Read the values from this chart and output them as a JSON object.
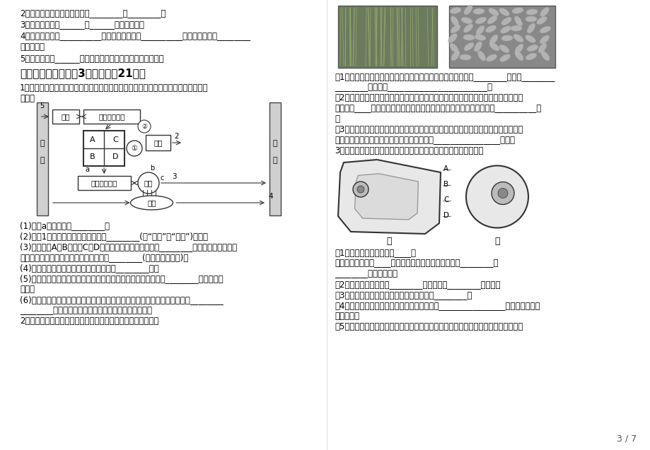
{
  "bg_color": "#ffffff",
  "text_color": "#000000",
  "page_num": "3 / 7",
  "left_lines": [
    "2、研究动物行为的方法主要有________和________。",
    "3、生物学是研究______和______规律的科学。",
    "4、植物的果皮由__________发育而来，种子由__________发育而来，胚由________",
    "发育而来。",
    "5、当肋间肌和______收缩时，胸廓扩张，气体被人体吸入。"
  ],
  "section_title": "三、识图分析题（关3个小题，列21分）",
  "q1_intro": "1、如图为人体呼吸系统、消化系统、循环系统和泌尿系统的生理活动示意图，请据图",
  "q1_intro2": "回答：",
  "q1_subs": [
    "(1)图中a生理过程叫________。",
    "(2)图中1生理过程进行时，膌肌处于________(填“收缩”或“舒张”)状态。",
    "(3)图中心脏A与B之间、C与D之间防止血液倒流的结构是________，若从手臂静脉注射",
    "药物，则药物经过心脏各腔的先后顺序是________(用图中字母表示)。",
    "(4)当血液流经肺部毛细血管时，血液变成________血。",
    "(5)某肆炎患者尿检时发现尿液中有红细胞和蛋白质，此人肆脏的________可能发生了",
    "病变。",
    "(6)肺泡壁、小肅绯毛壁以及毛细血管壁等结构的共同特点是：壁很薄，只由________",
    "________构成，这些结构特点都是与其功能相适应的。",
    "2、下图分别为一片麦田和收获的麦粒，请分析回答下列问题。"
  ],
  "q2_subs": [
    "（1）在阳光下，麦田中的小麦可进行光合作用，吸收空气中的________，合成________",
    "________，并释放________________________。",
    "（2）生长季节，小麦植株吸收的绝大部分水都通过某一生理活动散失掉了，则该生理",
    "活动是指____作用；小麦根尖结构中，吸收水分和无机盐的主要部位是__________区",
    "。",
    "（3）收获季节如遇阴雨天气，可将小麦堆放起来，并用塑料布遥盖。一段时间后，发",
    "现麦堆内部的温度较高，这是因为小麦在进行________________作用。",
    "3、下图是植物细胞和动物细胞的结构示意图，据图回答下列问题："
  ],
  "q3_subs": [
    "（1）属于植物细胞的是图____，",
    "属于动物细胞的图____，动物植物细胞都具有的结构是________、",
    "________，（填文字）",
    "（2）甲图中结构名称是________，它是进行________的场所。",
    "（3）用西瓜时流出的汁液来自细胞结构中的________。",
    "（4）经观察发现，只在甲细胞胞中含有液泡和________________，因此该细胞是",
    "植物细胞。",
    "（5）将图示甲、乙两种细胞放入蔮馏水中，甲细胞不会涨破，是因为甲具有保护支持"
  ]
}
